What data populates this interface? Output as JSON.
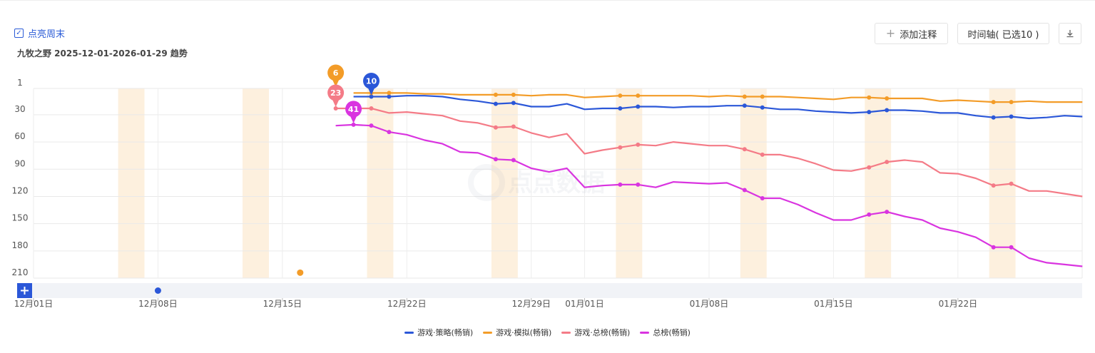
{
  "header": {
    "weekend_label": "点亮周末",
    "subtitle": "九牧之野 2025-12-01-2026-01-29 趋势",
    "add_note_label": "添加注释",
    "timeline_label": "时间轴( 已选10 )"
  },
  "watermark": "点点数据",
  "colors": {
    "strategy": "#2b57d8",
    "sim": "#f39c28",
    "game_total": "#f47b87",
    "total": "#d934e0",
    "weekend": "#fdf0de"
  },
  "chart_data": {
    "type": "line",
    "title": "九牧之野 2025-12-01-2026-01-29 趋势",
    "y_axis": {
      "reversed": true,
      "ticks": [
        1,
        30,
        60,
        90,
        120,
        150,
        180,
        210
      ],
      "ylim": [
        1,
        210
      ]
    },
    "x_axis": {
      "start": "2025-12-01",
      "end": "2026-01-29",
      "ticks": [
        {
          "date": "2025-12-01",
          "label": "12月01日"
        },
        {
          "date": "2025-12-08",
          "label": "12月08日"
        },
        {
          "date": "2025-12-15",
          "label": "12月15日"
        },
        {
          "date": "2025-12-22",
          "label": "12月22日"
        },
        {
          "date": "2025-12-29",
          "label": "12月29日"
        },
        {
          "date": "2026-01-01",
          "label": "01月01日"
        },
        {
          "date": "2026-01-08",
          "label": "01月08日"
        },
        {
          "date": "2026-01-15",
          "label": "01月15日"
        },
        {
          "date": "2026-01-22",
          "label": "01月22日"
        }
      ]
    },
    "weekend_bands": [
      [
        "2025-12-06",
        "2025-12-07"
      ],
      [
        "2025-12-13",
        "2025-12-14"
      ],
      [
        "2025-12-20",
        "2025-12-21"
      ],
      [
        "2025-12-27",
        "2025-12-28"
      ],
      [
        "2026-01-03",
        "2026-01-04"
      ],
      [
        "2026-01-10",
        "2026-01-11"
      ],
      [
        "2026-01-17",
        "2026-01-18"
      ],
      [
        "2026-01-24",
        "2026-01-25"
      ]
    ],
    "series": [
      {
        "key": "strategy",
        "name": "游戏·策略(畅销)",
        "points": [
          [
            "2025-12-19",
            10
          ],
          [
            "2025-12-20",
            10
          ],
          [
            "2025-12-21",
            10
          ],
          [
            "2025-12-22",
            9
          ],
          [
            "2025-12-23",
            9
          ],
          [
            "2025-12-24",
            10
          ],
          [
            "2025-12-25",
            13
          ],
          [
            "2025-12-26",
            15
          ],
          [
            "2025-12-27",
            18
          ],
          [
            "2025-12-28",
            17
          ],
          [
            "2025-12-29",
            21
          ],
          [
            "2025-12-30",
            21
          ],
          [
            "2025-12-31",
            18
          ],
          [
            "2026-01-01",
            24
          ],
          [
            "2026-01-02",
            23
          ],
          [
            "2026-01-03",
            23
          ],
          [
            "2026-01-04",
            21
          ],
          [
            "2026-01-05",
            21
          ],
          [
            "2026-01-06",
            22
          ],
          [
            "2026-01-07",
            21
          ],
          [
            "2026-01-08",
            21
          ],
          [
            "2026-01-09",
            20
          ],
          [
            "2026-01-10",
            20
          ],
          [
            "2026-01-11",
            22
          ],
          [
            "2026-01-12",
            24
          ],
          [
            "2026-01-13",
            24
          ],
          [
            "2026-01-14",
            26
          ],
          [
            "2026-01-15",
            27
          ],
          [
            "2026-01-16",
            28
          ],
          [
            "2026-01-17",
            27
          ],
          [
            "2026-01-18",
            25
          ],
          [
            "2026-01-19",
            25
          ],
          [
            "2026-01-20",
            26
          ],
          [
            "2026-01-21",
            28
          ],
          [
            "2026-01-22",
            28
          ],
          [
            "2026-01-23",
            31
          ],
          [
            "2026-01-24",
            33
          ],
          [
            "2026-01-25",
            32
          ],
          [
            "2026-01-26",
            34
          ],
          [
            "2026-01-27",
            33
          ],
          [
            "2026-01-28",
            31
          ],
          [
            "2026-01-29",
            32
          ]
        ],
        "markers": [
          "2025-12-20",
          "2025-12-21",
          "2025-12-27",
          "2025-12-28",
          "2026-01-03",
          "2026-01-04",
          "2026-01-10",
          "2026-01-11",
          "2026-01-17",
          "2026-01-18",
          "2026-01-24",
          "2026-01-25"
        ],
        "pin": {
          "date": "2025-12-20",
          "label": "10"
        }
      },
      {
        "key": "sim",
        "name": "游戏·模拟(畅销)",
        "points": [
          [
            "2025-12-19",
            6
          ],
          [
            "2025-12-20",
            6
          ],
          [
            "2025-12-21",
            6
          ],
          [
            "2025-12-22",
            6
          ],
          [
            "2025-12-23",
            7
          ],
          [
            "2025-12-24",
            7
          ],
          [
            "2025-12-25",
            8
          ],
          [
            "2025-12-26",
            8
          ],
          [
            "2025-12-27",
            8
          ],
          [
            "2025-12-28",
            8
          ],
          [
            "2025-12-29",
            9
          ],
          [
            "2025-12-30",
            8
          ],
          [
            "2025-12-31",
            8
          ],
          [
            "2026-01-01",
            11
          ],
          [
            "2026-01-02",
            10
          ],
          [
            "2026-01-03",
            9
          ],
          [
            "2026-01-04",
            9
          ],
          [
            "2026-01-05",
            9
          ],
          [
            "2026-01-06",
            9
          ],
          [
            "2026-01-07",
            9
          ],
          [
            "2026-01-08",
            10
          ],
          [
            "2026-01-09",
            9
          ],
          [
            "2026-01-10",
            10
          ],
          [
            "2026-01-11",
            10
          ],
          [
            "2026-01-12",
            10
          ],
          [
            "2026-01-13",
            11
          ],
          [
            "2026-01-14",
            12
          ],
          [
            "2026-01-15",
            13
          ],
          [
            "2026-01-16",
            11
          ],
          [
            "2026-01-17",
            11
          ],
          [
            "2026-01-18",
            12
          ],
          [
            "2026-01-19",
            12
          ],
          [
            "2026-01-20",
            12
          ],
          [
            "2026-01-21",
            15
          ],
          [
            "2026-01-22",
            14
          ],
          [
            "2026-01-23",
            15
          ],
          [
            "2026-01-24",
            16
          ],
          [
            "2026-01-25",
            16
          ],
          [
            "2026-01-26",
            15
          ],
          [
            "2026-01-27",
            16
          ],
          [
            "2026-01-28",
            16
          ],
          [
            "2026-01-29",
            16
          ]
        ],
        "markers": [
          "2025-12-20",
          "2025-12-21",
          "2025-12-27",
          "2025-12-28",
          "2026-01-03",
          "2026-01-04",
          "2026-01-10",
          "2026-01-11",
          "2026-01-17",
          "2026-01-18",
          "2026-01-24",
          "2026-01-25"
        ],
        "pin": {
          "date": "2025-12-18",
          "label": "6"
        },
        "extra_dot": {
          "date": "2025-12-16",
          "value": 204
        }
      },
      {
        "key": "game_total",
        "name": "游戏·总榜(畅销)",
        "points": [
          [
            "2025-12-18",
            23
          ],
          [
            "2025-12-19",
            23
          ],
          [
            "2025-12-20",
            23
          ],
          [
            "2025-12-21",
            28
          ],
          [
            "2025-12-22",
            27
          ],
          [
            "2025-12-23",
            29
          ],
          [
            "2025-12-24",
            31
          ],
          [
            "2025-12-25",
            37
          ],
          [
            "2025-12-26",
            39
          ],
          [
            "2025-12-27",
            44
          ],
          [
            "2025-12-28",
            43
          ],
          [
            "2025-12-29",
            50
          ],
          [
            "2025-12-30",
            55
          ],
          [
            "2025-12-31",
            51
          ],
          [
            "2026-01-01",
            73
          ],
          [
            "2026-01-02",
            69
          ],
          [
            "2026-01-03",
            66
          ],
          [
            "2026-01-04",
            63
          ],
          [
            "2026-01-05",
            64
          ],
          [
            "2026-01-06",
            60
          ],
          [
            "2026-01-07",
            62
          ],
          [
            "2026-01-08",
            64
          ],
          [
            "2026-01-09",
            64
          ],
          [
            "2026-01-10",
            68
          ],
          [
            "2026-01-11",
            74
          ],
          [
            "2026-01-12",
            74
          ],
          [
            "2026-01-13",
            78
          ],
          [
            "2026-01-14",
            84
          ],
          [
            "2026-01-15",
            91
          ],
          [
            "2026-01-16",
            92
          ],
          [
            "2026-01-17",
            88
          ],
          [
            "2026-01-18",
            82
          ],
          [
            "2026-01-19",
            80
          ],
          [
            "2026-01-20",
            82
          ],
          [
            "2026-01-21",
            94
          ],
          [
            "2026-01-22",
            95
          ],
          [
            "2026-01-23",
            100
          ],
          [
            "2026-01-24",
            108
          ],
          [
            "2026-01-25",
            106
          ],
          [
            "2026-01-26",
            114
          ],
          [
            "2026-01-27",
            114
          ],
          [
            "2026-01-28",
            117
          ],
          [
            "2026-01-29",
            120
          ]
        ],
        "markers": [
          "2025-12-18",
          "2025-12-20",
          "2025-12-27",
          "2025-12-28",
          "2026-01-03",
          "2026-01-04",
          "2026-01-10",
          "2026-01-11",
          "2026-01-17",
          "2026-01-18",
          "2026-01-24",
          "2026-01-25"
        ],
        "pin": {
          "date": "2025-12-18",
          "label": "23"
        }
      },
      {
        "key": "total",
        "name": "总榜(畅销)",
        "points": [
          [
            "2025-12-18",
            42
          ],
          [
            "2025-12-19",
            41
          ],
          [
            "2025-12-20",
            42
          ],
          [
            "2025-12-21",
            49
          ],
          [
            "2025-12-22",
            52
          ],
          [
            "2025-12-23",
            58
          ],
          [
            "2025-12-24",
            62
          ],
          [
            "2025-12-25",
            71
          ],
          [
            "2025-12-26",
            72
          ],
          [
            "2025-12-27",
            79
          ],
          [
            "2025-12-28",
            80
          ],
          [
            "2025-12-29",
            89
          ],
          [
            "2025-12-30",
            93
          ],
          [
            "2025-12-31",
            89
          ],
          [
            "2026-01-01",
            110
          ],
          [
            "2026-01-02",
            108
          ],
          [
            "2026-01-03",
            107
          ],
          [
            "2026-01-04",
            107
          ],
          [
            "2026-01-05",
            110
          ],
          [
            "2026-01-06",
            104
          ],
          [
            "2026-01-07",
            105
          ],
          [
            "2026-01-08",
            106
          ],
          [
            "2026-01-09",
            105
          ],
          [
            "2026-01-10",
            113
          ],
          [
            "2026-01-11",
            122
          ],
          [
            "2026-01-12",
            122
          ],
          [
            "2026-01-13",
            129
          ],
          [
            "2026-01-14",
            138
          ],
          [
            "2026-01-15",
            146
          ],
          [
            "2026-01-16",
            146
          ],
          [
            "2026-01-17",
            140
          ],
          [
            "2026-01-18",
            137
          ],
          [
            "2026-01-19",
            142
          ],
          [
            "2026-01-20",
            146
          ],
          [
            "2026-01-21",
            155
          ],
          [
            "2026-01-22",
            159
          ],
          [
            "2026-01-23",
            165
          ],
          [
            "2026-01-24",
            176
          ],
          [
            "2026-01-25",
            176
          ],
          [
            "2026-01-26",
            188
          ],
          [
            "2026-01-27",
            193
          ],
          [
            "2026-01-28",
            195
          ],
          [
            "2026-01-29",
            197
          ]
        ],
        "markers": [
          "2025-12-19",
          "2025-12-20",
          "2025-12-21",
          "2025-12-27",
          "2025-12-28",
          "2026-01-03",
          "2026-01-04",
          "2026-01-10",
          "2026-01-11",
          "2026-01-17",
          "2026-01-18",
          "2026-01-24",
          "2026-01-25"
        ],
        "pin": {
          "date": "2025-12-19",
          "label": "41"
        }
      }
    ],
    "navigator_dot": {
      "date": "2025-12-08"
    },
    "legend_position": "bottom-center",
    "grid": true
  }
}
